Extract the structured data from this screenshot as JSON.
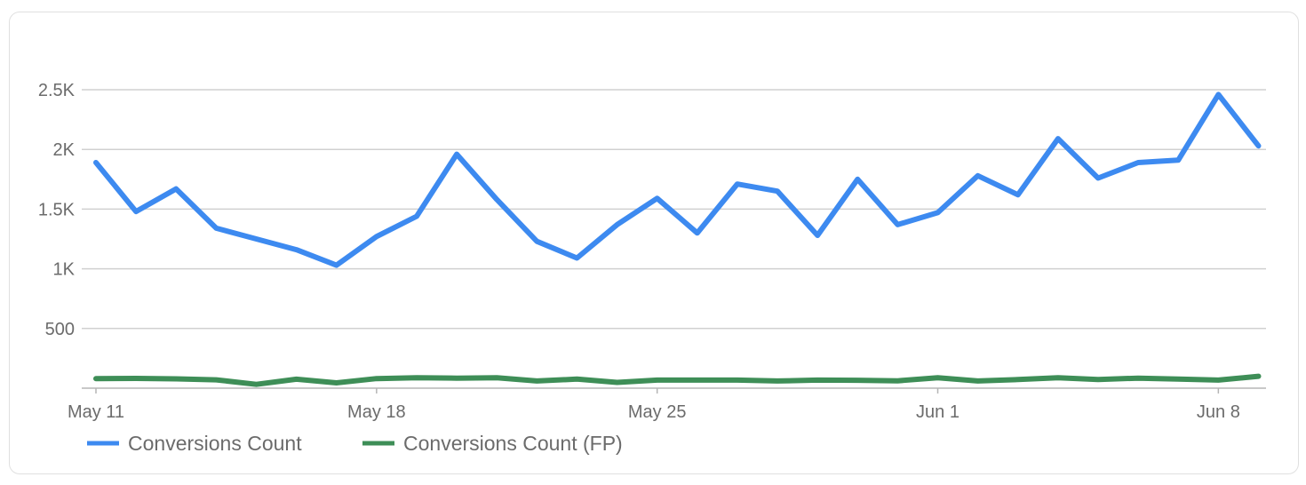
{
  "chart_data": {
    "type": "line",
    "x": [
      "May 11",
      "May 12",
      "May 13",
      "May 14",
      "May 15",
      "May 16",
      "May 17",
      "May 18",
      "May 19",
      "May 20",
      "May 21",
      "May 22",
      "May 23",
      "May 24",
      "May 25",
      "May 26",
      "May 27",
      "May 28",
      "May 29",
      "May 30",
      "May 31",
      "Jun 1",
      "Jun 2",
      "Jun 3",
      "Jun 4",
      "Jun 5",
      "Jun 6",
      "Jun 7",
      "Jun 8",
      "Jun 9"
    ],
    "x_tick_labels": [
      "May 11",
      "May 18",
      "May 25",
      "Jun 1",
      "Jun 8"
    ],
    "y_tick_labels": [
      "500",
      "1K",
      "1.5K",
      "2K",
      "2.5K"
    ],
    "y_ticks": [
      500,
      1000,
      1500,
      2000,
      2500
    ],
    "ylim": [
      0,
      2500
    ],
    "grid": true,
    "legend_position": "bottom-left",
    "series": [
      {
        "name": "Conversions Count",
        "color": "#3d8af0",
        "values": [
          1890,
          1480,
          1670,
          1340,
          1250,
          1160,
          1030,
          1270,
          1440,
          1960,
          1580,
          1230,
          1090,
          1370,
          1590,
          1300,
          1710,
          1650,
          1280,
          1750,
          1370,
          1470,
          1780,
          1620,
          2090,
          1760,
          1890,
          1910,
          2460,
          2030
        ]
      },
      {
        "name": "Conversions Count (FP)",
        "color": "#3e8e57",
        "values": [
          80,
          82,
          78,
          70,
          32,
          75,
          45,
          80,
          88,
          84,
          87,
          60,
          76,
          48,
          68,
          68,
          68,
          60,
          68,
          66,
          62,
          88,
          60,
          72,
          88,
          72,
          84,
          76,
          68,
          100
        ]
      }
    ]
  }
}
